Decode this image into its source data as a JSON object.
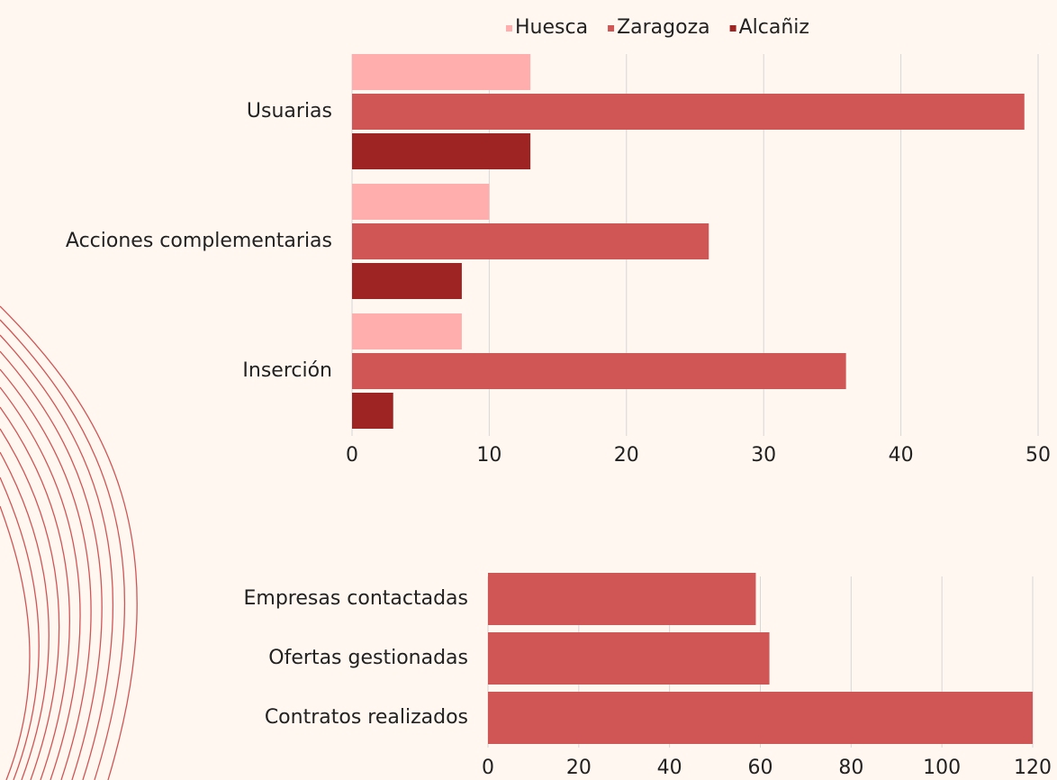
{
  "chart_data": [
    {
      "type": "hbar",
      "categories": [
        "Usuarias",
        "Acciones complementarias",
        "Inserción"
      ],
      "series": [
        {
          "name": "Huesca",
          "color": "#ffadad",
          "values": [
            13,
            10,
            8
          ]
        },
        {
          "name": "Zaragoza",
          "color": "#d05555",
          "values": [
            49,
            26,
            36
          ]
        },
        {
          "name": "Alcañiz",
          "color": "#9e2424",
          "values": [
            13,
            8,
            3
          ]
        }
      ],
      "xlim": [
        0,
        50
      ],
      "xticks": [
        0,
        10,
        20,
        30,
        40,
        50
      ],
      "grid": true,
      "legend": "top"
    },
    {
      "type": "hbar",
      "categories": [
        "Empresas contactadas",
        "Ofertas gestionadas",
        "Contratos realizados"
      ],
      "values": [
        59,
        62,
        120
      ],
      "color": "#d05555",
      "xlim": [
        0,
        120
      ],
      "xticks": [
        0,
        20,
        40,
        60,
        80,
        100,
        120
      ],
      "grid": true
    }
  ]
}
